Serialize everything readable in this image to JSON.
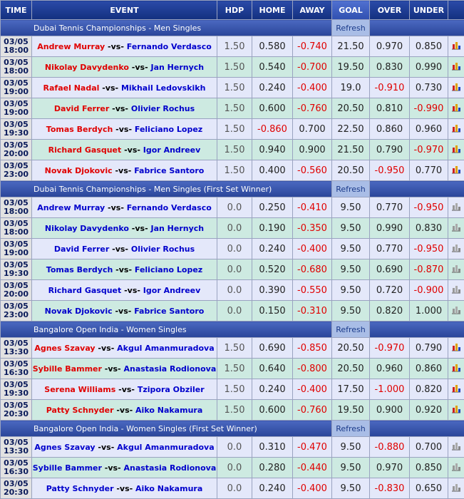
{
  "header": {
    "columns": [
      "TIME",
      "EVENT",
      "HDP",
      "HOME",
      "AWAY",
      "GOAL",
      "OVER",
      "UNDER"
    ]
  },
  "sections": [
    {
      "title": "Dubai Tennis Championships - Men Singles",
      "refresh": "Refresh",
      "home_team_color": "#e00000",
      "chart_icon": "color",
      "rows": [
        [
          "03/05",
          "18:00",
          "Andrew Murray",
          "-vs-",
          "Fernando Verdasco",
          "1.50",
          "0.580",
          "-0.740",
          "21.50",
          "0.970",
          "0.850"
        ],
        [
          "03/05",
          "18:00",
          "Nikolay Davydenko",
          "-vs-",
          "Jan Hernych",
          "1.50",
          "0.540",
          "-0.700",
          "19.50",
          "0.830",
          "0.990"
        ],
        [
          "03/05",
          "19:00",
          "Rafael Nadal",
          "-vs-",
          "Mikhail Ledovskikh",
          "1.50",
          "0.240",
          "-0.400",
          "19.0",
          "-0.910",
          "0.730"
        ],
        [
          "03/05",
          "19:00",
          "David Ferrer",
          "-vs-",
          "Olivier Rochus",
          "1.50",
          "0.600",
          "-0.760",
          "20.50",
          "0.810",
          "-0.990"
        ],
        [
          "03/05",
          "19:30",
          "Tomas Berdych",
          "-vs-",
          "Feliciano Lopez",
          "1.50",
          "-0.860",
          "0.700",
          "22.50",
          "0.860",
          "0.960"
        ],
        [
          "03/05",
          "20:00",
          "Richard Gasquet",
          "-vs-",
          "Igor Andreev",
          "1.50",
          "0.940",
          "0.900",
          "21.50",
          "0.790",
          "-0.970"
        ],
        [
          "03/05",
          "23:00",
          "Novak Djokovic",
          "-vs-",
          "Fabrice Santoro",
          "1.50",
          "0.400",
          "-0.560",
          "20.50",
          "-0.950",
          "0.770"
        ]
      ]
    },
    {
      "title": "Dubai Tennis Championships - Men Singles (First Set Winner)",
      "refresh": "Refresh",
      "home_team_color": "#0000cc",
      "chart_icon": "gray",
      "rows": [
        [
          "03/05",
          "18:00",
          "Andrew Murray",
          "-vs-",
          "Fernando Verdasco",
          "0.0",
          "0.250",
          "-0.410",
          "9.50",
          "0.770",
          "-0.950"
        ],
        [
          "03/05",
          "18:00",
          "Nikolay Davydenko",
          "-vs-",
          "Jan Hernych",
          "0.0",
          "0.190",
          "-0.350",
          "9.50",
          "0.990",
          "0.830"
        ],
        [
          "03/05",
          "19:00",
          "David Ferrer",
          "-vs-",
          "Olivier Rochus",
          "0.0",
          "0.240",
          "-0.400",
          "9.50",
          "0.770",
          "-0.950"
        ],
        [
          "03/05",
          "19:30",
          "Tomas Berdych",
          "-vs-",
          "Feliciano Lopez",
          "0.0",
          "0.520",
          "-0.680",
          "9.50",
          "0.690",
          "-0.870"
        ],
        [
          "03/05",
          "20:00",
          "Richard Gasquet",
          "-vs-",
          "Igor Andreev",
          "0.0",
          "0.390",
          "-0.550",
          "9.50",
          "0.720",
          "-0.900"
        ],
        [
          "03/05",
          "23:00",
          "Novak Djokovic",
          "-vs-",
          "Fabrice Santoro",
          "0.0",
          "0.150",
          "-0.310",
          "9.50",
          "0.820",
          "1.000"
        ]
      ]
    },
    {
      "title": "Bangalore Open India - Women Singles",
      "refresh": "Refresh",
      "home_team_color": "#e00000",
      "chart_icon": "color",
      "rows": [
        [
          "03/05",
          "13:30",
          "Agnes Szavay",
          "-vs-",
          "Akgul Amanmuradova",
          "1.50",
          "0.690",
          "-0.850",
          "20.50",
          "-0.970",
          "0.790"
        ],
        [
          "03/05",
          "16:30",
          "Sybille Bammer",
          "-vs-",
          "Anastasia Rodionova",
          "1.50",
          "0.640",
          "-0.800",
          "20.50",
          "0.960",
          "0.860"
        ],
        [
          "03/05",
          "19:30",
          "Serena Williams",
          "-vs-",
          "Tzipora Obziler",
          "1.50",
          "0.240",
          "-0.400",
          "17.50",
          "-1.000",
          "0.820"
        ],
        [
          "03/05",
          "20:30",
          "Patty Schnyder",
          "-vs-",
          "Aiko Nakamura",
          "1.50",
          "0.600",
          "-0.760",
          "19.50",
          "0.900",
          "0.920"
        ]
      ]
    },
    {
      "title": "Bangalore Open India - Women Singles (First Set Winner)",
      "refresh": "Refresh",
      "home_team_color": "#0000cc",
      "chart_icon": "gray",
      "rows": [
        [
          "03/05",
          "13:30",
          "Agnes Szavay",
          "-vs-",
          "Akgul Amanmuradova",
          "0.0",
          "0.310",
          "-0.470",
          "9.50",
          "-0.880",
          "0.700"
        ],
        [
          "03/05",
          "16:30",
          "Sybille Bammer",
          "-vs-",
          "Anastasia Rodionova",
          "0.0",
          "0.280",
          "-0.440",
          "9.50",
          "0.970",
          "0.850"
        ],
        [
          "03/05",
          "20:30",
          "Patty Schnyder",
          "-vs-",
          "Aiko Nakamura",
          "0.0",
          "0.240",
          "-0.400",
          "9.50",
          "-0.830",
          "0.650"
        ]
      ]
    }
  ]
}
